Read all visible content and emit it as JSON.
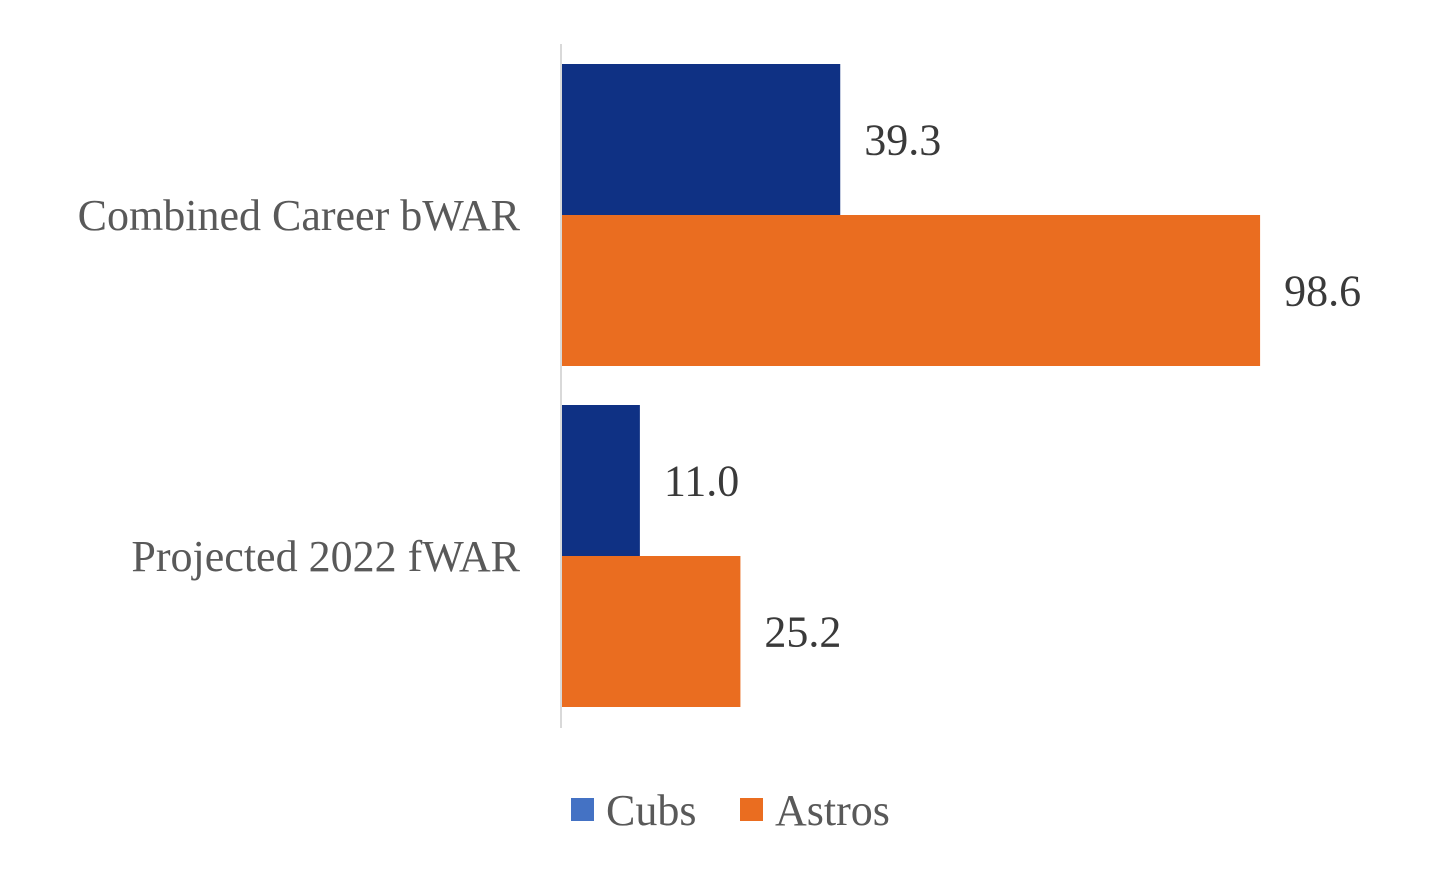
{
  "chart_data": {
    "type": "bar",
    "orientation": "horizontal",
    "categories": [
      "Combined Career bWAR",
      "Projected 2022 fWAR"
    ],
    "series": [
      {
        "name": "Cubs",
        "values": [
          39.3,
          11.0
        ],
        "value_labels": [
          "39.3",
          "11.0"
        ],
        "color": "#0f3184",
        "legend_color": "#4472c4"
      },
      {
        "name": "Astros",
        "values": [
          98.6,
          25.2
        ],
        "value_labels": [
          "98.6",
          "25.2"
        ],
        "color": "#ea6d20",
        "legend_color": "#ea6d20"
      }
    ],
    "xlim": [
      0,
      100
    ],
    "grid": false,
    "legend": "bottom",
    "axis_color": "#d9d9d9"
  }
}
